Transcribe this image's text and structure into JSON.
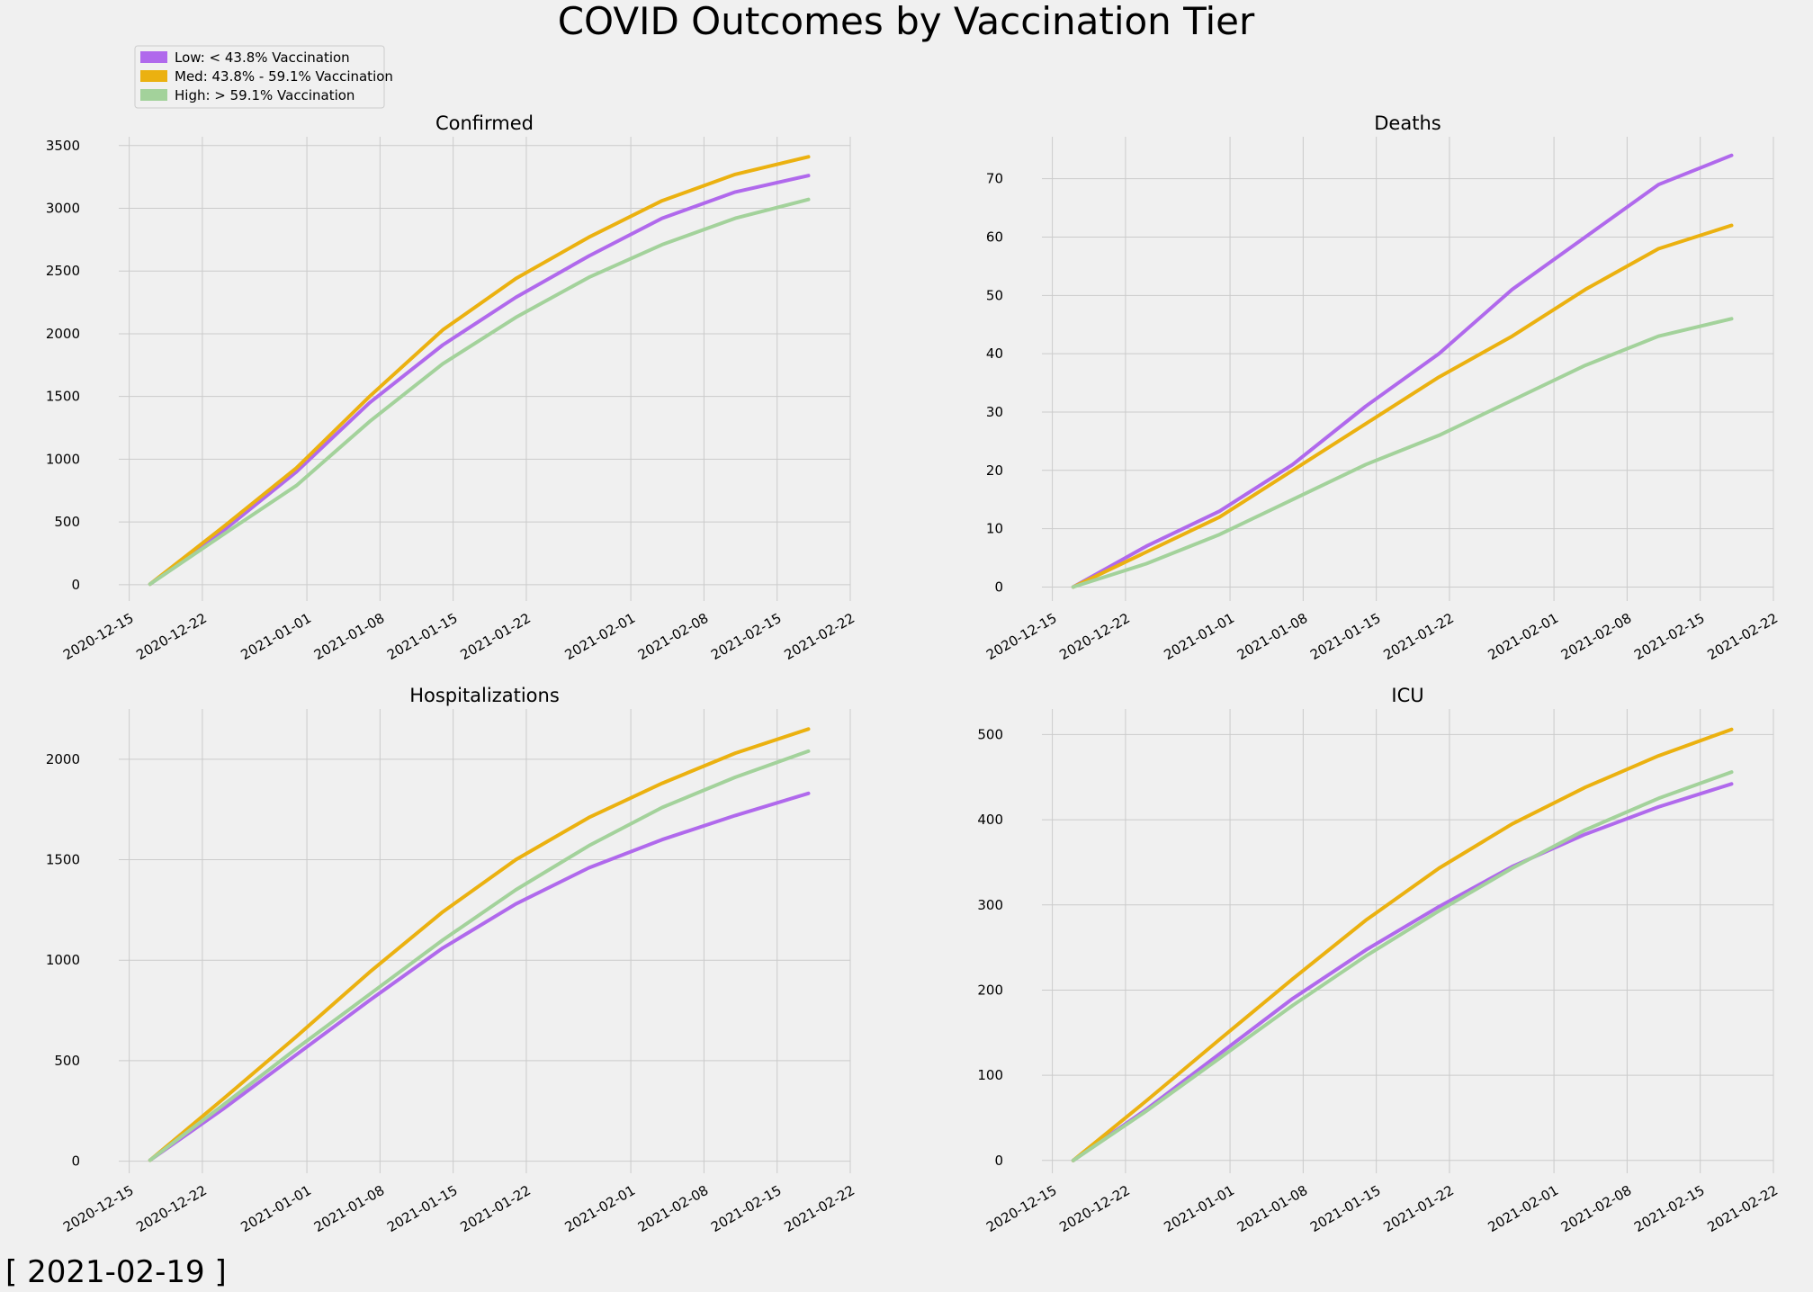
{
  "figure": {
    "title": "COVID Outcomes by Vaccination Tier",
    "date_label": "[ 2021-02-19 ]",
    "colors": {
      "background": "#f0f0f0",
      "grid": "#cbcbcb"
    }
  },
  "legend": [
    {
      "label": "Low: < 43.8% Vaccination",
      "color": "#b069ec"
    },
    {
      "label": "Med: 43.8% - 59.1% Vaccination",
      "color": "#ebb110"
    },
    {
      "label": "High: > 59.1%  Vaccination",
      "color": "#a3d29b"
    }
  ],
  "chart_data": [
    {
      "type": "line",
      "title": "Confirmed",
      "x": [
        "2020-12-17",
        "2020-12-24",
        "2020-12-31",
        "2021-01-07",
        "2021-01-14",
        "2021-01-21",
        "2021-01-28",
        "2021-02-04",
        "2021-02-11",
        "2021-02-18"
      ],
      "x_ticks": [
        "2020-12-15",
        "2020-12-22",
        "2021-01-01",
        "2021-01-08",
        "2021-01-15",
        "2021-01-22",
        "2021-02-01",
        "2021-02-08",
        "2021-02-15",
        "2021-02-22"
      ],
      "xlim": [
        "2020-12-14",
        "2021-02-22"
      ],
      "y_ticks": [
        0,
        500,
        1000,
        1500,
        2000,
        2500,
        3000,
        3500
      ],
      "ylim": [
        -130,
        3570
      ],
      "series": [
        {
          "name": "Low: < 43.8% Vaccination",
          "color": "#b069ec",
          "values": [
            5,
            430,
            900,
            1450,
            1910,
            2290,
            2620,
            2920,
            3130,
            3260
          ]
        },
        {
          "name": "Med: 43.8% - 59.1% Vaccination",
          "color": "#ebb110",
          "values": [
            5,
            460,
            930,
            1500,
            2030,
            2440,
            2770,
            3060,
            3270,
            3410
          ]
        },
        {
          "name": "High: > 59.1%  Vaccination",
          "color": "#a3d29b",
          "values": [
            5,
            400,
            790,
            1300,
            1760,
            2130,
            2450,
            2710,
            2920,
            3070
          ]
        }
      ]
    },
    {
      "type": "line",
      "title": "Deaths",
      "x": [
        "2020-12-17",
        "2020-12-24",
        "2020-12-31",
        "2021-01-07",
        "2021-01-14",
        "2021-01-21",
        "2021-01-28",
        "2021-02-04",
        "2021-02-11",
        "2021-02-18"
      ],
      "x_ticks": [
        "2020-12-15",
        "2020-12-22",
        "2021-01-01",
        "2021-01-08",
        "2021-01-15",
        "2021-01-22",
        "2021-02-01",
        "2021-02-08",
        "2021-02-15",
        "2021-02-22"
      ],
      "xlim": [
        "2020-12-14",
        "2021-02-22"
      ],
      "y_ticks": [
        0,
        10,
        20,
        30,
        40,
        50,
        60,
        70
      ],
      "ylim": [
        -2.4,
        77.2
      ],
      "series": [
        {
          "name": "Low: < 43.8% Vaccination",
          "color": "#b069ec",
          "values": [
            0,
            7,
            13,
            21,
            31,
            40,
            51,
            60,
            69,
            74
          ]
        },
        {
          "name": "Med: 43.8% - 59.1% Vaccination",
          "color": "#ebb110",
          "values": [
            0,
            6,
            12,
            20,
            28,
            36,
            43,
            51,
            58,
            62
          ]
        },
        {
          "name": "High: > 59.1%  Vaccination",
          "color": "#a3d29b",
          "values": [
            0,
            4,
            9,
            15,
            21,
            26,
            32,
            38,
            43,
            46
          ]
        }
      ]
    },
    {
      "type": "line",
      "title": "Hospitalizations",
      "x": [
        "2020-12-17",
        "2020-12-24",
        "2020-12-31",
        "2021-01-07",
        "2021-01-14",
        "2021-01-21",
        "2021-01-28",
        "2021-02-04",
        "2021-02-11",
        "2021-02-18"
      ],
      "x_ticks": [
        "2020-12-15",
        "2020-12-22",
        "2021-01-01",
        "2021-01-08",
        "2021-01-15",
        "2021-01-22",
        "2021-02-01",
        "2021-02-08",
        "2021-02-15",
        "2021-02-22"
      ],
      "xlim": [
        "2020-12-14",
        "2021-02-22"
      ],
      "y_ticks": [
        0,
        500,
        1000,
        1500,
        2000
      ],
      "ylim": [
        -60,
        2250
      ],
      "series": [
        {
          "name": "Low: < 43.8% Vaccination",
          "color": "#b069ec",
          "values": [
            5,
            260,
            530,
            800,
            1060,
            1280,
            1460,
            1600,
            1720,
            1830
          ]
        },
        {
          "name": "Med: 43.8% - 59.1% Vaccination",
          "color": "#ebb110",
          "values": [
            5,
            310,
            620,
            940,
            1240,
            1500,
            1710,
            1880,
            2030,
            2150
          ]
        },
        {
          "name": "High: > 59.1%  Vaccination",
          "color": "#a3d29b",
          "values": [
            5,
            280,
            560,
            830,
            1100,
            1350,
            1570,
            1760,
            1910,
            2040
          ]
        }
      ]
    },
    {
      "type": "line",
      "title": "ICU",
      "x": [
        "2020-12-17",
        "2020-12-24",
        "2020-12-31",
        "2021-01-07",
        "2021-01-14",
        "2021-01-21",
        "2021-01-28",
        "2021-02-04",
        "2021-02-11",
        "2021-02-18"
      ],
      "x_ticks": [
        "2020-12-15",
        "2020-12-22",
        "2021-01-01",
        "2021-01-08",
        "2021-01-15",
        "2021-01-22",
        "2021-02-01",
        "2021-02-08",
        "2021-02-15",
        "2021-02-22"
      ],
      "xlim": [
        "2020-12-14",
        "2021-02-22"
      ],
      "y_ticks": [
        0,
        100,
        200,
        300,
        400,
        500
      ],
      "ylim": [
        -15,
        530
      ],
      "series": [
        {
          "name": "Low: < 43.8% Vaccination",
          "color": "#b069ec",
          "values": [
            0,
            60,
            125,
            190,
            247,
            298,
            345,
            383,
            415,
            442
          ]
        },
        {
          "name": "Med: 43.8% - 59.1% Vaccination",
          "color": "#ebb110",
          "values": [
            0,
            70,
            142,
            213,
            282,
            343,
            395,
            438,
            475,
            506
          ]
        },
        {
          "name": "High: > 59.1%  Vaccination",
          "color": "#a3d29b",
          "values": [
            0,
            58,
            120,
            182,
            240,
            293,
            343,
            388,
            425,
            456
          ]
        }
      ]
    }
  ]
}
